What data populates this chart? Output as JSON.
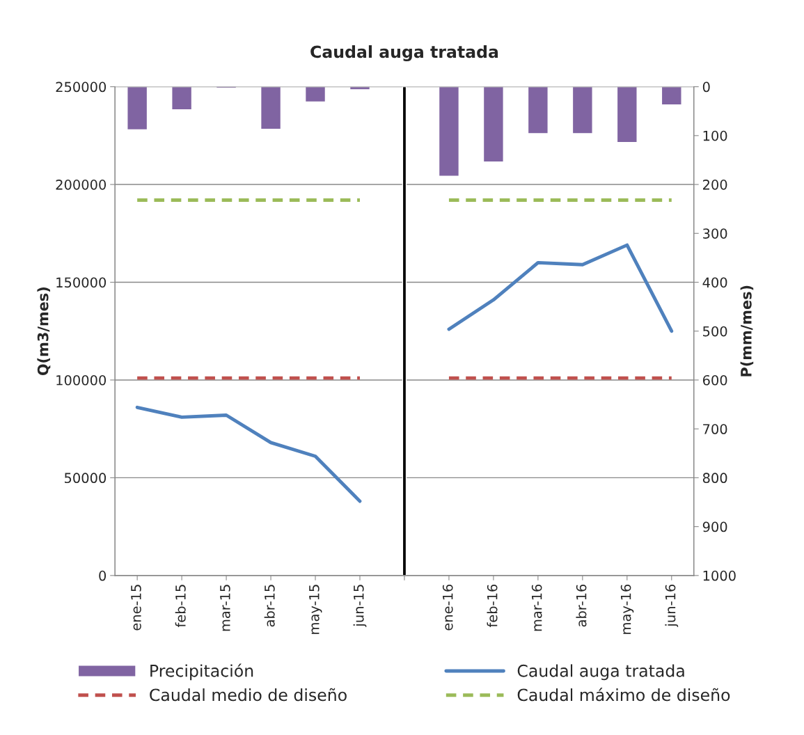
{
  "chart_data": {
    "type": "line",
    "title": "Caudal auga tratada",
    "ylabel": "Q(m3/mes)",
    "y2label": "P(mm/mes)",
    "categories": [
      "ene-15",
      "feb-15",
      "mar-15",
      "abr-15",
      "may-15",
      "jun-15",
      null,
      "ene-16",
      "feb-16",
      "mar-16",
      "abr-16",
      "may-16",
      "jun-16"
    ],
    "series": [
      {
        "name": "Precipitación",
        "type": "bar",
        "axis": "y2",
        "color": "#8064a2",
        "values": [
          88,
          47,
          3,
          87,
          31,
          6,
          null,
          183,
          154,
          96,
          96,
          114,
          37
        ]
      },
      {
        "type": "bar",
        "color": "#000000",
        "values": [
          null,
          null,
          null,
          null,
          null,
          null,
          250000,
          null,
          null,
          null,
          null,
          null,
          null
        ]
      },
      {
        "name": "Caudal auga tratada",
        "color": "#4f81bd",
        "line_style": "solid",
        "values": [
          86000,
          81000,
          82000,
          68000,
          61000,
          38000,
          null,
          126000,
          141000,
          160000,
          159000,
          169000,
          125000
        ]
      },
      {
        "name": "Caudal medio de diseño",
        "color": "#c0504d",
        "line_style": "dashed",
        "values": [
          101000,
          101000,
          101000,
          101000,
          101000,
          101000,
          null,
          101000,
          101000,
          101000,
          101000,
          101000,
          101000
        ]
      },
      {
        "name": "Caudal máximo de diseño",
        "color": "#9bbb59",
        "line_style": "dashed",
        "values": [
          192000,
          192000,
          192000,
          192000,
          192000,
          192000,
          null,
          192000,
          192000,
          192000,
          192000,
          192000,
          192000
        ]
      }
    ],
    "ylim": [
      0,
      250000
    ],
    "yticks": [
      0,
      50000,
      100000,
      150000,
      200000,
      250000
    ],
    "y2lim": [
      1000,
      0
    ],
    "y2ticks": [
      0,
      100,
      200,
      300,
      400,
      500,
      600,
      700,
      800,
      900,
      1000
    ],
    "grid": "y",
    "legend": "bottom",
    "marker": "none"
  }
}
